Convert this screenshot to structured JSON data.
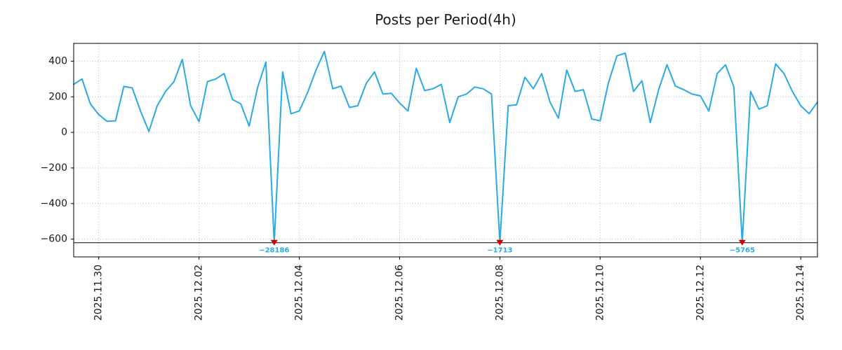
{
  "chart_data": {
    "type": "line",
    "title": "Posts per Period(4h)",
    "period_hours": 4,
    "values": [
      270,
      300,
      160,
      100,
      62,
      65,
      258,
      250,
      120,
      5,
      150,
      230,
      285,
      410,
      150,
      60,
      285,
      300,
      330,
      185,
      160,
      35,
      250,
      395,
      -28186,
      340,
      105,
      120,
      225,
      350,
      455,
      245,
      260,
      140,
      150,
      275,
      340,
      215,
      220,
      165,
      120,
      360,
      235,
      245,
      270,
      55,
      200,
      215,
      255,
      245,
      215,
      -1713,
      150,
      155,
      310,
      245,
      330,
      170,
      80,
      350,
      230,
      240,
      75,
      65,
      280,
      430,
      445,
      230,
      290,
      55,
      240,
      380,
      260,
      240,
      215,
      205,
      120,
      330,
      380,
      255,
      -5765,
      230,
      130,
      150,
      385,
      330,
      230,
      150,
      105,
      170
    ],
    "x_tick_labels": [
      "2025.11.30",
      "2025.12.02",
      "2025.12.04",
      "2025.12.06",
      "2025.12.08",
      "2025.12.10",
      "2025.12.12",
      "2025.12.14"
    ],
    "x_tick_indices": [
      3,
      15,
      27,
      39,
      51,
      63,
      75,
      87
    ],
    "y_ticks": [
      {
        "value": 400,
        "label": "400"
      },
      {
        "value": 200,
        "label": "200"
      },
      {
        "value": 0,
        "label": "0"
      },
      {
        "value": -200,
        "label": "−200"
      },
      {
        "value": -400,
        "label": "−400"
      },
      {
        "value": -600,
        "label": "−600"
      }
    ],
    "ylim": [
      -700,
      500
    ],
    "clip_value": -620,
    "grid": true,
    "legend": "none",
    "annotations": [
      {
        "index": 24,
        "label": "−28186",
        "value": -28186
      },
      {
        "index": 51,
        "label": "−1713",
        "value": -1713
      },
      {
        "index": 80,
        "label": "−5765",
        "value": -5765
      }
    ],
    "colors": {
      "line": "#29abe2",
      "marker": "#cc0000",
      "annotation": "#29abe2",
      "grid": "#b5b5b5",
      "axis": "#000000",
      "text": "#1a1a1a"
    }
  }
}
